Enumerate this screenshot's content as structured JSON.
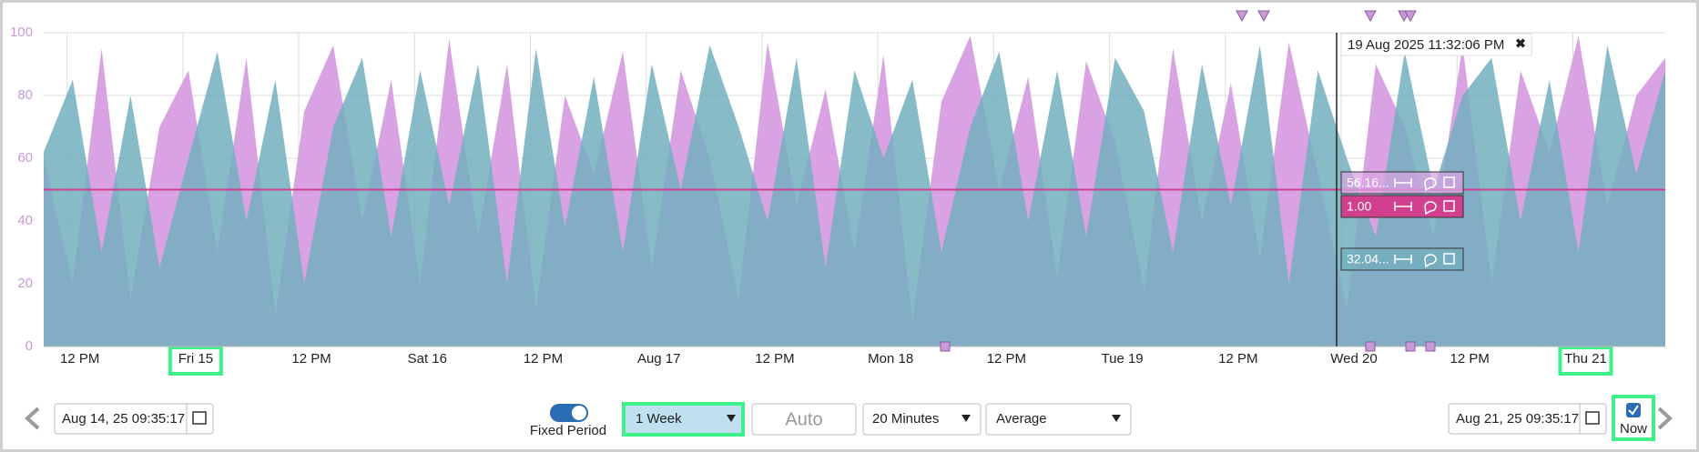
{
  "chart_data": {
    "type": "area",
    "ylim": [
      0,
      100
    ],
    "yticks": [
      0,
      20,
      40,
      60,
      80,
      100
    ],
    "grid": true,
    "xlim": [
      0,
      168
    ],
    "xticks": [
      {
        "value": 2.42,
        "label": "12 PM"
      },
      {
        "value": 14.42,
        "label": "Fri 15"
      },
      {
        "value": 26.42,
        "label": "12 PM"
      },
      {
        "value": 38.42,
        "label": "Sat 16"
      },
      {
        "value": 50.42,
        "label": "12 PM"
      },
      {
        "value": 62.42,
        "label": "Aug 17"
      },
      {
        "value": 74.42,
        "label": "12 PM"
      },
      {
        "value": 86.42,
        "label": "Mon 18"
      },
      {
        "value": 98.42,
        "label": "12 PM"
      },
      {
        "value": 110.42,
        "label": "Tue 19"
      },
      {
        "value": 122.42,
        "label": "12 PM"
      },
      {
        "value": 134.42,
        "label": "Wed 20"
      },
      {
        "value": 146.42,
        "label": "12 PM"
      },
      {
        "value": 158.42,
        "label": "Thu 21"
      }
    ],
    "x": [
      0,
      3,
      6,
      9,
      12,
      15,
      18,
      21,
      24,
      27,
      30,
      33,
      36,
      39,
      42,
      45,
      48,
      51,
      54,
      57,
      60,
      63,
      66,
      69,
      72,
      75,
      78,
      81,
      84,
      87,
      90,
      93,
      96,
      99,
      102,
      105,
      108,
      111,
      114,
      117,
      120,
      123,
      126,
      129,
      132,
      135,
      138,
      141,
      144,
      147,
      150,
      153,
      156,
      159,
      162,
      165,
      168
    ],
    "series": [
      {
        "color": "#d9a3e3",
        "values": [
          60,
          20,
          95,
          15,
          70,
          88,
          30,
          92,
          10,
          75,
          96,
          40,
          85,
          20,
          98,
          35,
          90,
          12,
          80,
          55,
          94,
          25,
          88,
          60,
          15,
          97,
          45,
          82,
          30,
          93,
          8,
          78,
          99,
          50,
          86,
          22,
          91,
          65,
          18,
          95,
          40,
          84,
          28,
          97,
          55,
          12,
          90,
          70,
          35,
          96,
          20,
          88,
          62,
          99,
          45,
          80,
          92
        ]
      },
      {
        "color": "#72afbe",
        "values": [
          62,
          85,
          30,
          80,
          25,
          60,
          94,
          40,
          85,
          20,
          70,
          92,
          35,
          88,
          45,
          90,
          20,
          95,
          38,
          86,
          30,
          90,
          50,
          96,
          70,
          40,
          92,
          25,
          88,
          60,
          85,
          30,
          70,
          94,
          40,
          88,
          35,
          92,
          75,
          30,
          90,
          45,
          96,
          20,
          88,
          60,
          35,
          94,
          50,
          80,
          92,
          40,
          85,
          30,
          96,
          55,
          88
        ]
      }
    ],
    "threshold": {
      "value": 50,
      "color": "#d0408f"
    },
    "cursor": {
      "x": 133.95,
      "label": "19 Aug 2025 11:32:06 PM"
    },
    "flags": [
      {
        "label": "56.16...",
        "color": "#d9a3e3"
      },
      {
        "label": "1.00",
        "color": "#d0408f"
      },
      {
        "label": "32.04...",
        "color": "#72afbe"
      }
    ]
  },
  "controls": {
    "start": "Aug 14, 25 09:35:17",
    "fixed_period": "Fixed Period",
    "period": "1 Week",
    "auto": "Auto",
    "interval": "20 Minutes",
    "aggregate": "Average",
    "end": "Aug 21, 25 09:35:17",
    "now": "Now"
  }
}
